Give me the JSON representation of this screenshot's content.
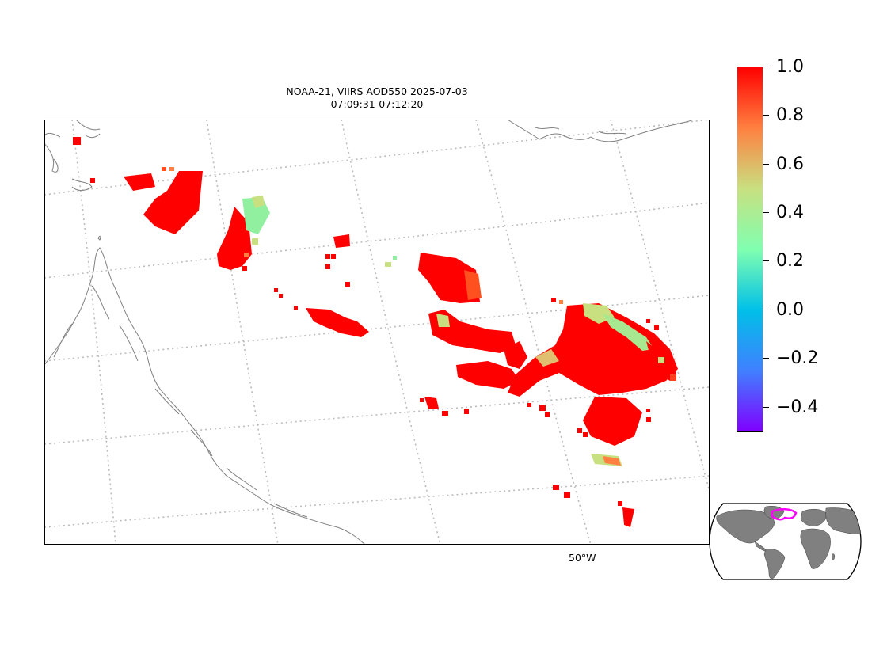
{
  "title": {
    "line1": "NOAA-21, VIIRS AOD550 2025-07-03",
    "line2": "07:09:31-07:12:20"
  },
  "map": {
    "lon_labels": [
      "50°W"
    ],
    "gridline_style": "dotted",
    "coastline_color": "#808080",
    "gridline_color": "#bbbbbb"
  },
  "colorbar": {
    "colormap": "rainbow",
    "vmin": -0.5,
    "vmax": 1.0,
    "tick_labels": [
      "1.0",
      "0.8",
      "0.6",
      "0.4",
      "0.2",
      "0.0",
      "−0.2",
      "−0.4"
    ],
    "colors": {
      "top": "#ff0000",
      "upper": "#ff8040",
      "mid_upper": "#c8e080",
      "mid": "#80ffb0",
      "mid_low": "#00c0e8",
      "low": "#4080ff",
      "bottom": "#8000ff"
    }
  },
  "inset": {
    "name": "world overview",
    "land_color": "#808080",
    "highlight_color": "#ff00ff"
  }
}
